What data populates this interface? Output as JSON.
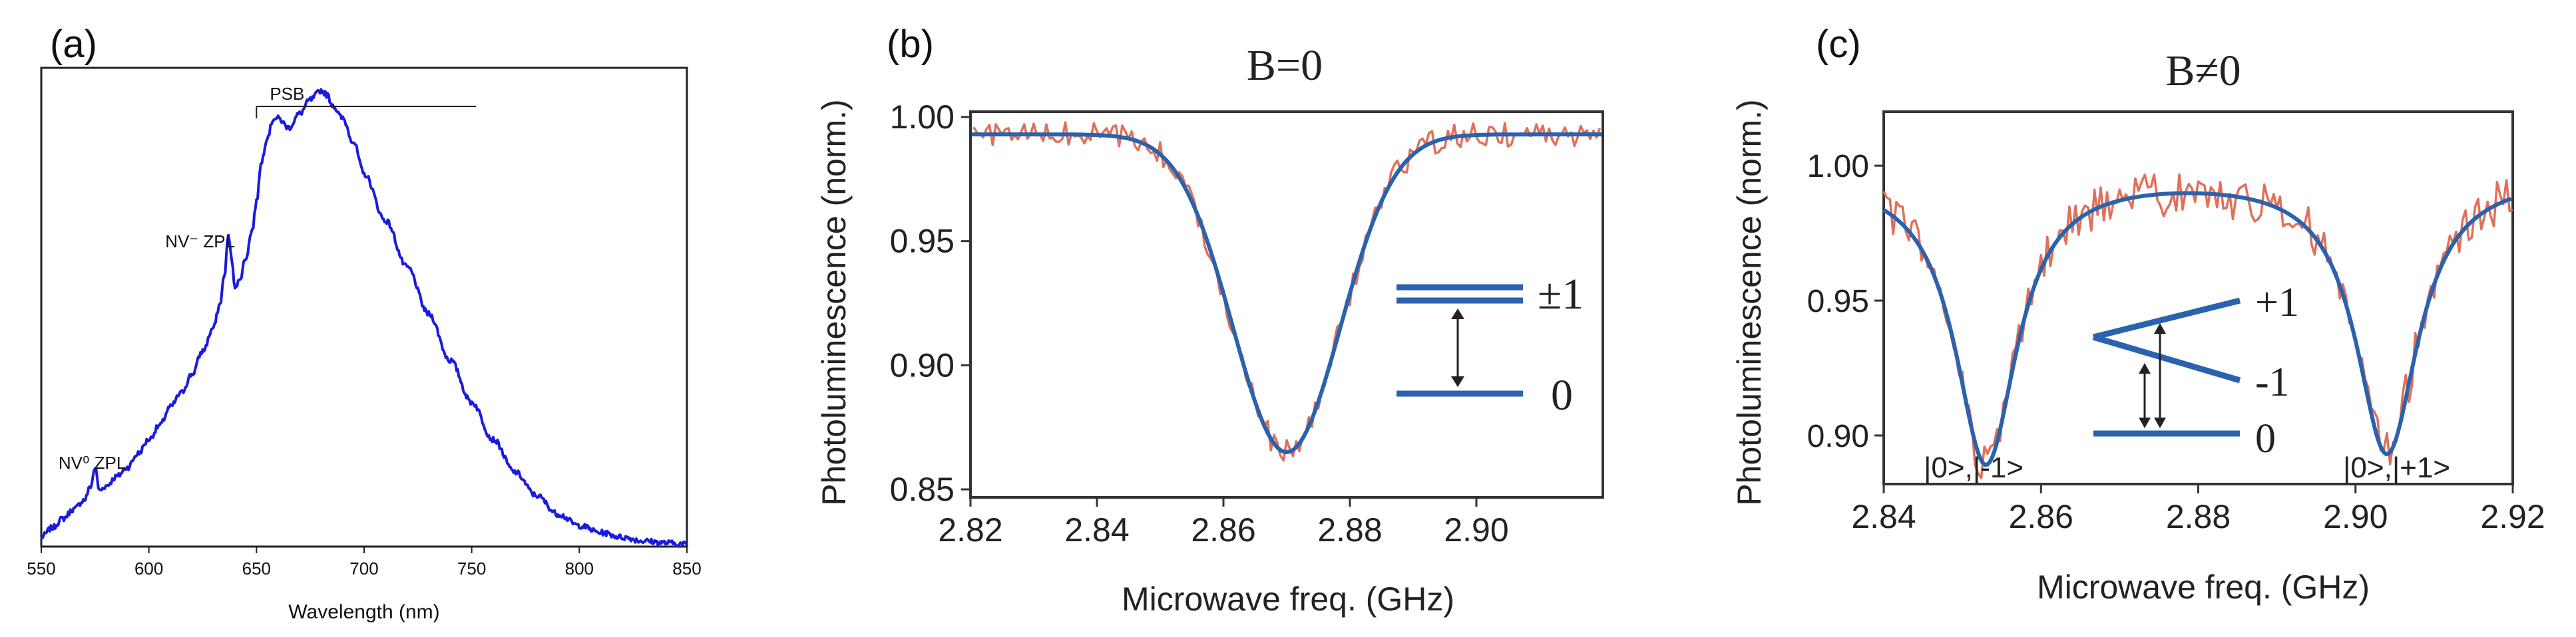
{
  "colors": {
    "spectrum": "#1a1ae0",
    "data": "#e0705a",
    "fit": "#2b62ad",
    "axis": "#222222",
    "levels": "#2b62ad"
  },
  "chart_data": [
    {
      "panel_label": "(a)",
      "type": "line",
      "title": "",
      "xlabel": "Wavelength (nm)",
      "ylabel": "",
      "xlim": [
        550,
        850
      ],
      "ylim": [
        0,
        1.0
      ],
      "x_ticks": [
        "550",
        "600",
        "650",
        "700",
        "750",
        "800",
        "850"
      ],
      "y_ticks": [],
      "series": [
        {
          "x": [
            550,
            555,
            560,
            565,
            570,
            573,
            575,
            577,
            580,
            585,
            590,
            595,
            600,
            605,
            610,
            615,
            620,
            625,
            630,
            633,
            635,
            637,
            638,
            640,
            642,
            645,
            648,
            650,
            652,
            655,
            658,
            660,
            665,
            670,
            675,
            680,
            683,
            685,
            690,
            695,
            700,
            710,
            720,
            730,
            740,
            750,
            760,
            770,
            780,
            790,
            800,
            810,
            820,
            830,
            840,
            850
          ],
          "y": [
            0.02,
            0.04,
            0.06,
            0.08,
            0.1,
            0.13,
            0.17,
            0.12,
            0.13,
            0.15,
            0.17,
            0.2,
            0.23,
            0.26,
            0.3,
            0.33,
            0.37,
            0.42,
            0.47,
            0.52,
            0.58,
            0.67,
            0.63,
            0.56,
            0.57,
            0.62,
            0.68,
            0.74,
            0.82,
            0.88,
            0.92,
            0.92,
            0.9,
            0.93,
            0.96,
            0.98,
            0.97,
            0.95,
            0.92,
            0.87,
            0.8,
            0.7,
            0.6,
            0.5,
            0.4,
            0.31,
            0.23,
            0.16,
            0.11,
            0.07,
            0.045,
            0.03,
            0.02,
            0.012,
            0.008,
            0.005
          ]
        }
      ],
      "annotations": [
        {
          "text": "PSB",
          "x_from": 650,
          "x_to": 752
        },
        {
          "text": "NV⁻ ZPL",
          "x": 637
        },
        {
          "text": "NV⁰ ZPL",
          "x": 575
        }
      ]
    },
    {
      "panel_label": "(b)",
      "type": "line",
      "title": "B=0",
      "xlabel": "Microwave freq. (GHz)",
      "ylabel": "Photoluminescence (norm.)",
      "xlim": [
        2.82,
        2.92
      ],
      "ylim": [
        0.85,
        1.0
      ],
      "x_ticks": [
        "2.82",
        "2.84",
        "2.86",
        "2.88",
        "2.90"
      ],
      "y_ticks": [
        "0.85",
        "0.90",
        "0.95",
        "1.00"
      ],
      "dip": {
        "center": 2.87,
        "depth": 0.128,
        "width": 0.0085,
        "baseline": 0.993
      },
      "noise_amplitude": 0.005,
      "series": [
        {
          "name": "",
          "role": "measured"
        },
        {
          "name": "",
          "role": "fit"
        }
      ],
      "level_labels": [
        "±1",
        "0"
      ]
    },
    {
      "panel_label": "(c)",
      "type": "line",
      "title": "B≠0",
      "xlabel": "Microwave freq. (GHz)",
      "ylabel": "Photoluminescence (norm.)",
      "xlim": [
        2.84,
        2.92
      ],
      "ylim": [
        0.882,
        1.02
      ],
      "x_ticks": [
        "2.84",
        "2.86",
        "2.88",
        "2.90",
        "2.92"
      ],
      "y_ticks": [
        "0.90",
        "0.95",
        "1.00"
      ],
      "dips": [
        {
          "center": 2.853,
          "depth": 0.107,
          "width": 0.0048
        },
        {
          "center": 2.904,
          "depth": 0.103,
          "width": 0.0048
        }
      ],
      "baseline": 0.997,
      "noise_amplitude": 0.009,
      "series": [
        {
          "name": "",
          "role": "measured"
        },
        {
          "name": "",
          "role": "fit"
        }
      ],
      "level_labels": [
        "+1",
        "-1",
        "0"
      ],
      "dip_labels": [
        "|0>,|-1>",
        "|0>,|+1>"
      ]
    }
  ]
}
